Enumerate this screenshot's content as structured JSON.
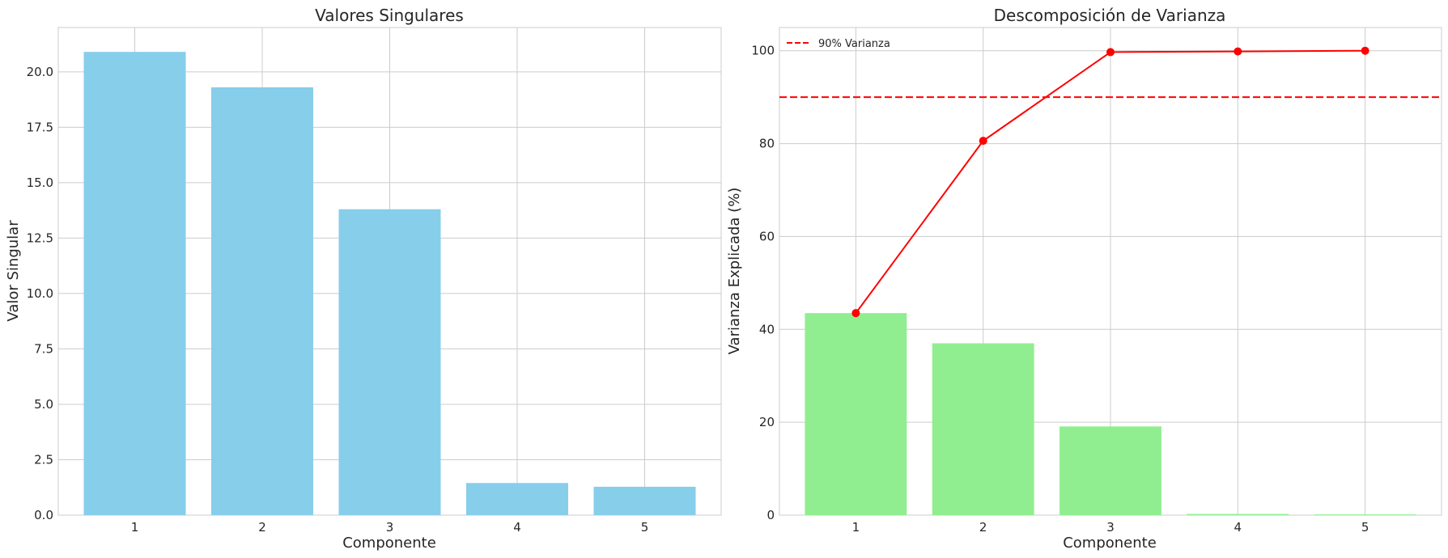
{
  "chart_data": [
    {
      "type": "bar",
      "title": "Valores Singulares",
      "xlabel": "Componente",
      "ylabel": "Valor Singular",
      "categories": [
        "1",
        "2",
        "3",
        "4",
        "5"
      ],
      "values": [
        20.9,
        19.3,
        13.8,
        1.45,
        1.28
      ],
      "ylim": [
        0,
        22
      ],
      "yticks": [
        "0.0",
        "2.5",
        "5.0",
        "7.5",
        "10.0",
        "12.5",
        "15.0",
        "17.5",
        "20.0"
      ],
      "grid": true,
      "colors": {
        "bar": "#87ceeb"
      }
    },
    {
      "type": "bar",
      "title": "Descomposición de Varianza",
      "xlabel": "Componente",
      "ylabel": "Varianza Explicada (%)",
      "categories": [
        "1",
        "2",
        "3",
        "4",
        "5"
      ],
      "values": [
        43.5,
        37.0,
        19.1,
        0.25,
        0.15
      ],
      "cumulative": [
        43.5,
        80.6,
        99.7,
        99.85,
        100.0
      ],
      "threshold": 90,
      "legend": {
        "label": "90% Varianza",
        "placement": "upper-left"
      },
      "ylim": [
        0,
        105
      ],
      "yticks": [
        "0",
        "20",
        "40",
        "60",
        "80",
        "100"
      ],
      "grid": true,
      "colors": {
        "bar": "#90ee90",
        "line": "#ff0000",
        "threshold": "#ff0000"
      }
    }
  ]
}
